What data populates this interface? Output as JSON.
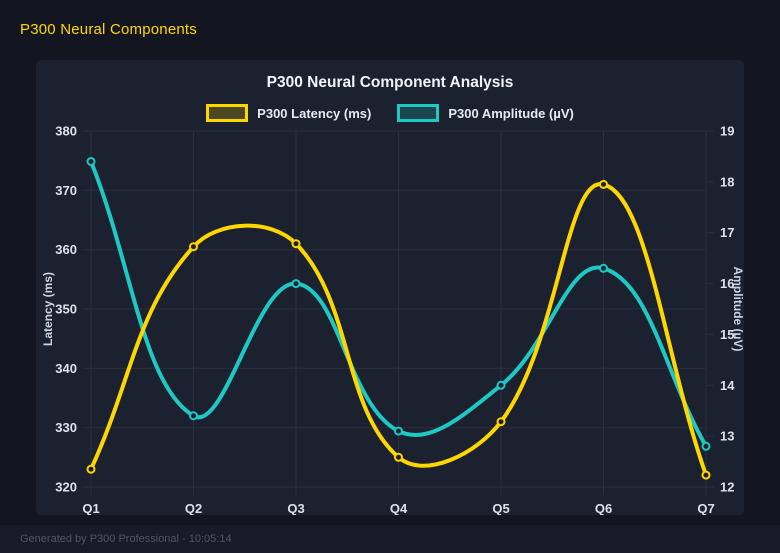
{
  "page": {
    "title": "P300 Neural Components",
    "footer": "Generated by P300 Professional - 10:05:14",
    "accent_color": "#ffd700",
    "background_color": "#131621",
    "card_color": "#1c212f"
  },
  "chart_data": {
    "type": "line",
    "title": "P300 Neural Component Analysis",
    "categories": [
      "Q1",
      "Q2",
      "Q3",
      "Q4",
      "Q5",
      "Q6",
      "Q7"
    ],
    "series": [
      {
        "name": "P300 Latency (ms)",
        "axis": "left",
        "color": "#ffd700",
        "values": [
          323,
          360.5,
          361,
          325,
          331,
          371,
          322
        ]
      },
      {
        "name": "P300 Amplitude (µV)",
        "axis": "right",
        "color": "#1ec8c4",
        "values": [
          18.4,
          13.4,
          16.0,
          13.1,
          14.0,
          16.3,
          12.8
        ]
      }
    ],
    "axes": {
      "left": {
        "label": "Latency (ms)",
        "min": 320,
        "max": 380,
        "step": 10
      },
      "right": {
        "label": "Amplitude (µV)",
        "min": 12,
        "max": 19,
        "step": 1
      }
    },
    "grid": true,
    "legend_position": "top",
    "line_tension": 0.4
  }
}
